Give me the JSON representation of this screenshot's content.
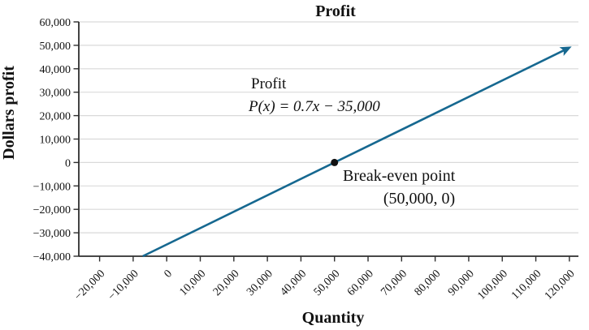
{
  "chart_data": {
    "type": "line",
    "title": "Profit",
    "xlabel": "Quantity",
    "ylabel": "Dollars profit",
    "xlim": [
      -26200,
      122700
    ],
    "ylim": [
      -40000,
      60000
    ],
    "x_ticks": [
      -20000,
      -10000,
      0,
      10000,
      20000,
      30000,
      40000,
      50000,
      60000,
      70000,
      80000,
      90000,
      100000,
      110000,
      120000
    ],
    "y_ticks": [
      -40000,
      -30000,
      -20000,
      -10000,
      0,
      10000,
      20000,
      30000,
      40000,
      50000,
      60000
    ],
    "grid": "horizontal",
    "legend_position": "none",
    "series": [
      {
        "name": "Profit",
        "equation": "P(x) = 0.7x − 35,000",
        "points": [
          {
            "x": -7143,
            "y": -40000
          },
          {
            "x": 119800,
            "y": 48860
          }
        ],
        "arrow_end": true
      }
    ],
    "annotations": {
      "series_label": "Profit",
      "equation_label": "P(x) = 0.7x − 35,000",
      "break_even_label": "Break-even point",
      "break_even_coords_label": "(50,000, 0)",
      "break_even_point": {
        "x": 50000,
        "y": 0
      }
    },
    "colors": {
      "line": "#166890",
      "grid": "#d9d9d9",
      "axis": "#2e2e2e",
      "text": "#111111",
      "point": "#111111",
      "background": "#ffffff"
    }
  }
}
